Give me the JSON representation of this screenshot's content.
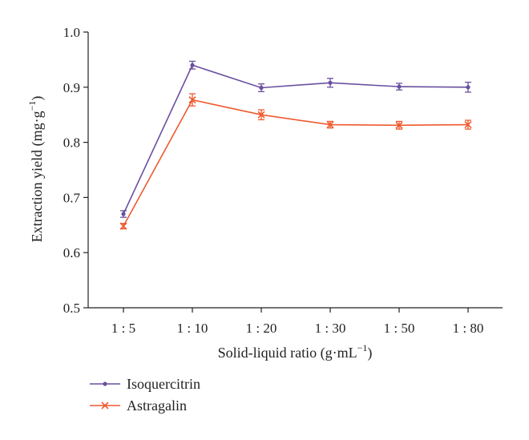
{
  "chart_data": {
    "type": "line",
    "title": "",
    "xlabel": "Solid-liquid ratio (g·mL",
    "xlabel_sup": "−1",
    "xlabel_end": ")",
    "ylabel": "Extraction yield (mg·g",
    "ylabel_sup": "−1",
    "ylabel_end": ")",
    "categories": [
      "1 : 5",
      "1 : 10",
      "1 : 20",
      "1 : 30",
      "1 : 50",
      "1 : 80"
    ],
    "ylim": [
      0.5,
      1.0
    ],
    "yticks": [
      "0.5",
      "0.6",
      "0.7",
      "0.8",
      "0.9",
      "1.0"
    ],
    "grid": false,
    "legend_position": "bottom-left",
    "series": [
      {
        "name": "Isoquercitrin",
        "color": "#6a4fa0",
        "marker": "dot",
        "values": [
          0.67,
          0.94,
          0.899,
          0.908,
          0.901,
          0.9
        ],
        "errors": [
          0.006,
          0.007,
          0.007,
          0.008,
          0.006,
          0.009
        ]
      },
      {
        "name": "Astragalin",
        "color": "#ee5a2f",
        "marker": "x",
        "values": [
          0.648,
          0.877,
          0.85,
          0.832,
          0.831,
          0.832
        ],
        "errors": [
          0.005,
          0.011,
          0.009,
          0.006,
          0.007,
          0.008
        ]
      }
    ]
  }
}
